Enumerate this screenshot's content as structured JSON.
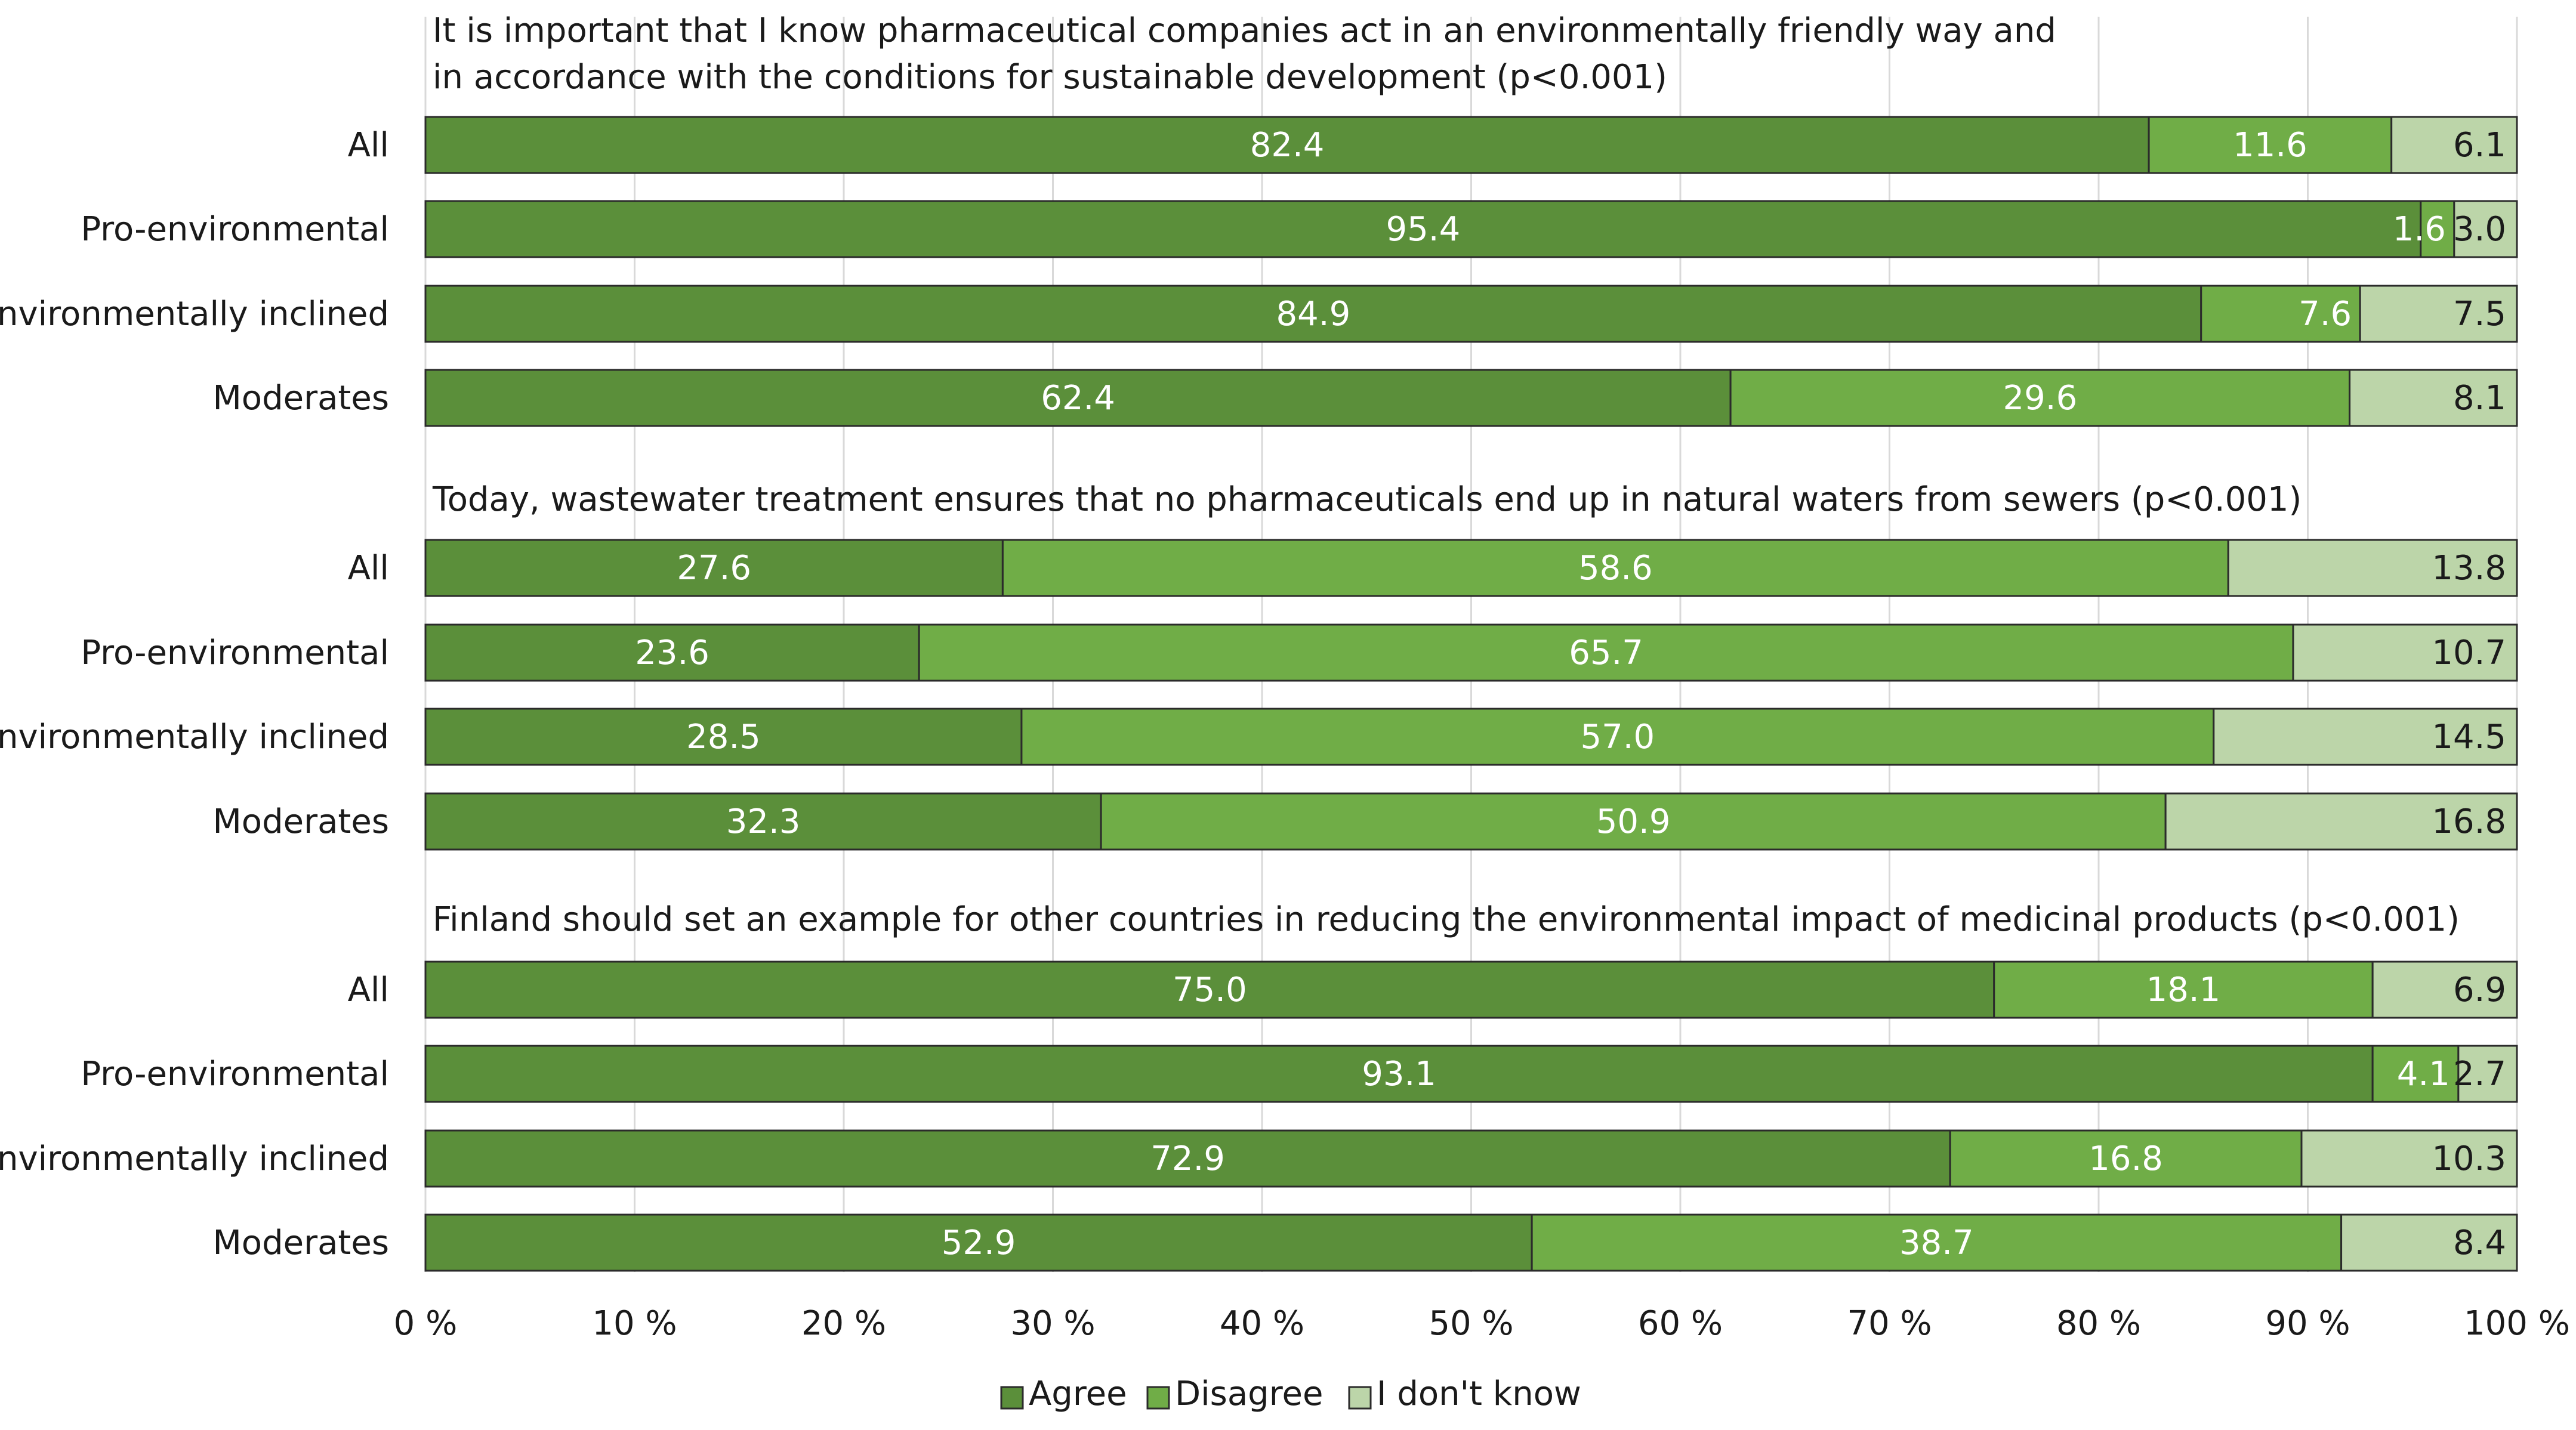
{
  "colors": {
    "agree": "#5b8f3a",
    "disagree": "#70ad47",
    "dont_know": "#bcd5a9",
    "gridline": "#d9d9d9",
    "bar_stroke": "#2b2b2b"
  },
  "chart_data": {
    "type": "bar",
    "orientation": "horizontal",
    "stacked": true,
    "xlim": [
      0,
      100
    ],
    "x_ticks": [
      "0 %",
      "10 %",
      "20 %",
      "30 %",
      "40 %",
      "50 %",
      "60 %",
      "70 %",
      "80 %",
      "90 %",
      "100 %"
    ],
    "legend": {
      "position": "bottom",
      "entries": [
        "Agree",
        "Disagree",
        "I don't know"
      ]
    },
    "series_names": [
      "Agree",
      "Disagree",
      "I don't know"
    ],
    "groups": [
      {
        "title_lines": [
          "It is important that I know pharmaceutical companies act in an environmentally friendly way and",
          "in accordance with the conditions for sustainable development (p<0.001)"
        ],
        "rows": [
          {
            "category": "All",
            "values": [
              82.4,
              11.6,
              6.1
            ],
            "labels": [
              "82.4",
              "11.6",
              "6.1"
            ]
          },
          {
            "category": "Pro-environmental",
            "values": [
              95.4,
              1.6,
              3.0
            ],
            "labels": [
              "95.4",
              "1.6",
              "3.0"
            ]
          },
          {
            "category": "Environmentally inclined",
            "values": [
              84.9,
              7.6,
              7.5
            ],
            "labels": [
              "84.9",
              "7.6",
              "7.5"
            ]
          },
          {
            "category": "Moderates",
            "values": [
              62.4,
              29.6,
              8.1
            ],
            "labels": [
              "62.4",
              "29.6",
              "8.1"
            ]
          }
        ]
      },
      {
        "title_lines": [
          "Today, wastewater treatment ensures that no pharmaceuticals end up in natural waters from sewers (p<0.001)"
        ],
        "rows": [
          {
            "category": "All",
            "values": [
              27.6,
              58.6,
              13.8
            ],
            "labels": [
              "27.6",
              "58.6",
              "13.8"
            ]
          },
          {
            "category": "Pro-environmental",
            "values": [
              23.6,
              65.7,
              10.7
            ],
            "labels": [
              "23.6",
              "65.7",
              "10.7"
            ]
          },
          {
            "category": "Environmentally inclined",
            "values": [
              28.5,
              57.0,
              14.5
            ],
            "labels": [
              "28.5",
              "57.0",
              "14.5"
            ]
          },
          {
            "category": "Moderates",
            "values": [
              32.3,
              50.9,
              16.8
            ],
            "labels": [
              "32.3",
              "50.9",
              "16.8"
            ]
          }
        ]
      },
      {
        "title_lines": [
          "Finland should set an example for other countries in reducing the environmental impact of medicinal products (p<0.001)"
        ],
        "rows": [
          {
            "category": "All",
            "values": [
              75.0,
              18.1,
              6.9
            ],
            "labels": [
              "75.0",
              "18.1",
              "6.9"
            ]
          },
          {
            "category": "Pro-environmental",
            "values": [
              93.1,
              4.1,
              2.7
            ],
            "labels": [
              "93.1",
              "4.1",
              "2.7"
            ]
          },
          {
            "category": "Environmentally inclined",
            "values": [
              72.9,
              16.8,
              10.3
            ],
            "labels": [
              "72.9",
              "16.8",
              "10.3"
            ]
          },
          {
            "category": "Moderates",
            "values": [
              52.9,
              38.7,
              8.4
            ],
            "labels": [
              "52.9",
              "38.7",
              "8.4"
            ]
          }
        ]
      }
    ]
  }
}
